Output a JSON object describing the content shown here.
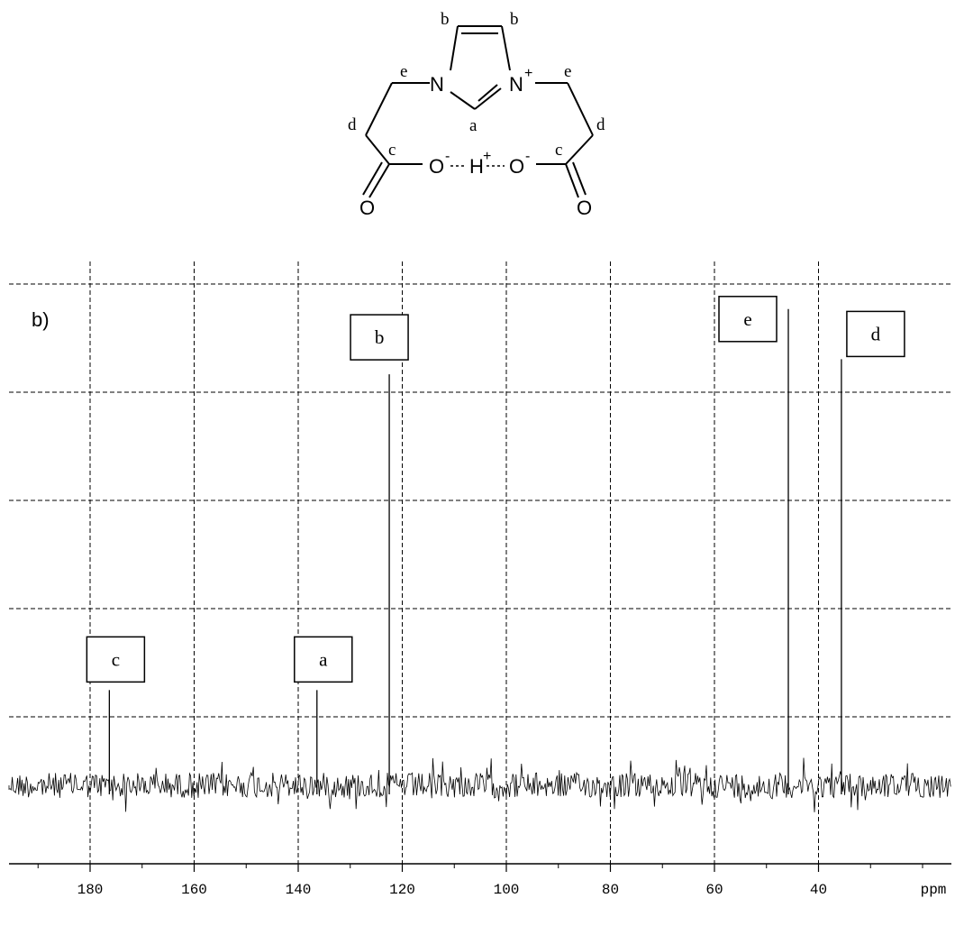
{
  "molecule": {
    "carbon_labels": {
      "a": "a",
      "b": "b",
      "c": "c",
      "d": "d",
      "e": "e"
    },
    "atoms": {
      "N": "N",
      "O": "O",
      "H": "H"
    },
    "charges": {
      "plus": "+",
      "minus": "-"
    }
  },
  "panel_label": "b)",
  "chart_data": {
    "type": "line",
    "title": "",
    "xlabel": "ppm",
    "ylabel": "",
    "xlim": [
      194,
      165
    ],
    "x_reversed": true,
    "x_ticks": [
      180,
      160,
      140,
      120,
      100,
      80,
      60,
      40
    ],
    "x_tick_labels": [
      "180",
      "160",
      "140",
      "120",
      "100",
      "80",
      "60",
      "40"
    ],
    "grid": true,
    "peaks": [
      {
        "label": "c",
        "ppm": 176.3,
        "relative_intensity": 0.19
      },
      {
        "label": "a",
        "ppm": 136.4,
        "relative_intensity": 0.19
      },
      {
        "label": "b",
        "ppm": 122.5,
        "relative_intensity": 0.82
      },
      {
        "label": "e",
        "ppm": 45.8,
        "relative_intensity": 0.95
      },
      {
        "label": "d",
        "ppm": 35.6,
        "relative_intensity": 0.85
      }
    ]
  }
}
